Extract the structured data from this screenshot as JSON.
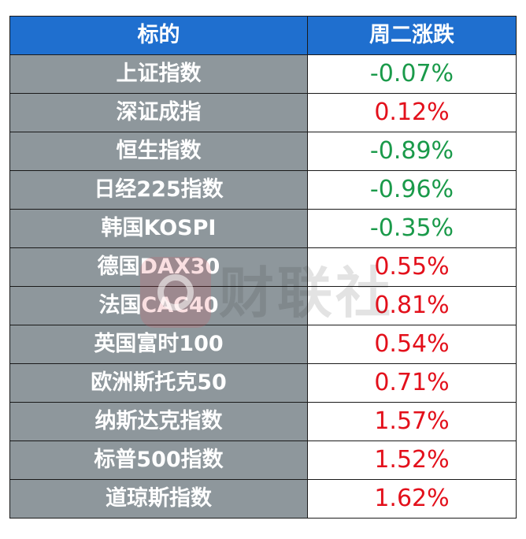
{
  "header": {
    "col1": "标的",
    "col2": "周二涨跌"
  },
  "rows": [
    {
      "name": "上证指数",
      "change": "-0.07%",
      "direction": "down"
    },
    {
      "name": "深证成指",
      "change": "0.12%",
      "direction": "up"
    },
    {
      "name": "恒生指数",
      "change": "-0.89%",
      "direction": "down"
    },
    {
      "name": "日经225指数",
      "change": "-0.96%",
      "direction": "down"
    },
    {
      "name": "韩国KOSPI",
      "change": "-0.35%",
      "direction": "down"
    },
    {
      "name": "德国DAX30",
      "change": "0.55%",
      "direction": "up"
    },
    {
      "name": "法国CAC40",
      "change": "0.81%",
      "direction": "up"
    },
    {
      "name": "英国富时100",
      "change": "0.54%",
      "direction": "up"
    },
    {
      "name": "欧洲斯托克50",
      "change": "0.71%",
      "direction": "up"
    },
    {
      "name": "纳斯达克指数",
      "change": "1.57%",
      "direction": "up"
    },
    {
      "name": "标普500指数",
      "change": "1.52%",
      "direction": "up"
    },
    {
      "name": "道琼斯指数",
      "change": "1.62%",
      "direction": "up"
    }
  ],
  "watermark": {
    "text": "财联社"
  },
  "colors": {
    "header_bg": "#1f6fcf",
    "name_bg": "#8e979c",
    "up": "#e3101b",
    "down": "#1a9a4a"
  }
}
